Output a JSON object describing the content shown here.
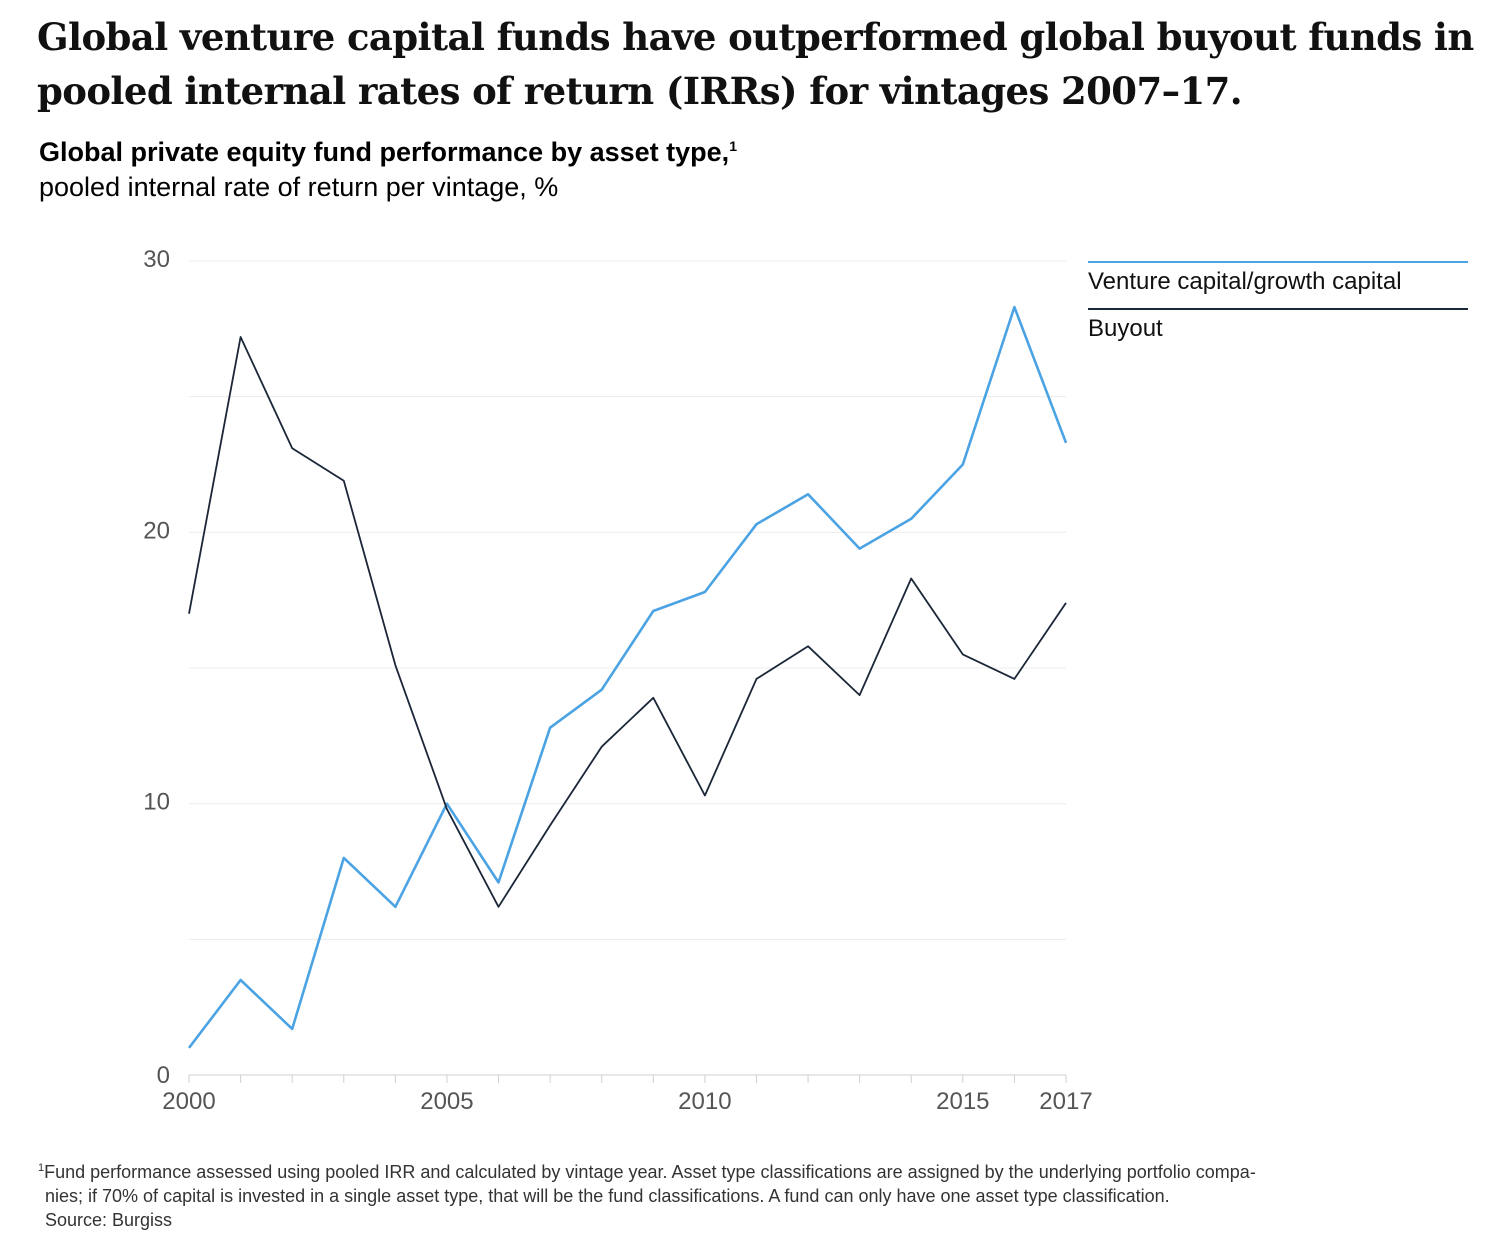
{
  "headline": "Global venture capital funds have outperformed global buyout funds in pooled internal rates of return (IRRs) for vintages 2007–17.",
  "subtitle": "Global private equity fund performance by asset type,",
  "subtitle_note_marker": "1",
  "subunit": "pooled internal rate of return per vintage, %",
  "footnote": {
    "marker": "1",
    "line1": "Fund performance assessed using pooled IRR and calculated by vintage year. Asset type classifications are assigned by the underlying portfolio compa-",
    "line2": "nies; if 70% of capital is invested in a single asset type, that will be the fund classifications. A fund can only have one asset type classification.",
    "line3": "Source: Burgiss"
  },
  "chart_data": {
    "type": "line",
    "x": [
      2000,
      2001,
      2002,
      2003,
      2004,
      2005,
      2006,
      2007,
      2008,
      2009,
      2010,
      2011,
      2012,
      2013,
      2014,
      2015,
      2016,
      2017
    ],
    "series": [
      {
        "name": "Venture capital/growth capital",
        "color": "#4ba3e3",
        "values": [
          1.0,
          3.5,
          1.7,
          8.0,
          6.2,
          10.0,
          7.1,
          12.8,
          14.2,
          17.1,
          17.8,
          20.3,
          21.4,
          19.4,
          20.5,
          22.5,
          28.3,
          23.3
        ]
      },
      {
        "name": "Buyout",
        "color": "#1b2638",
        "values": [
          17.0,
          27.2,
          23.1,
          21.9,
          15.1,
          9.8,
          6.2,
          9.2,
          12.1,
          13.9,
          10.3,
          14.6,
          15.8,
          14.0,
          18.3,
          15.5,
          14.6,
          17.4
        ]
      }
    ],
    "ylim": [
      0,
      30
    ],
    "yticks": [
      0,
      10,
      20,
      30
    ],
    "xtick_labels": [
      "2000",
      "2005",
      "2010",
      "2015",
      "2017"
    ],
    "grid": true,
    "legend_placement": "top-right"
  }
}
